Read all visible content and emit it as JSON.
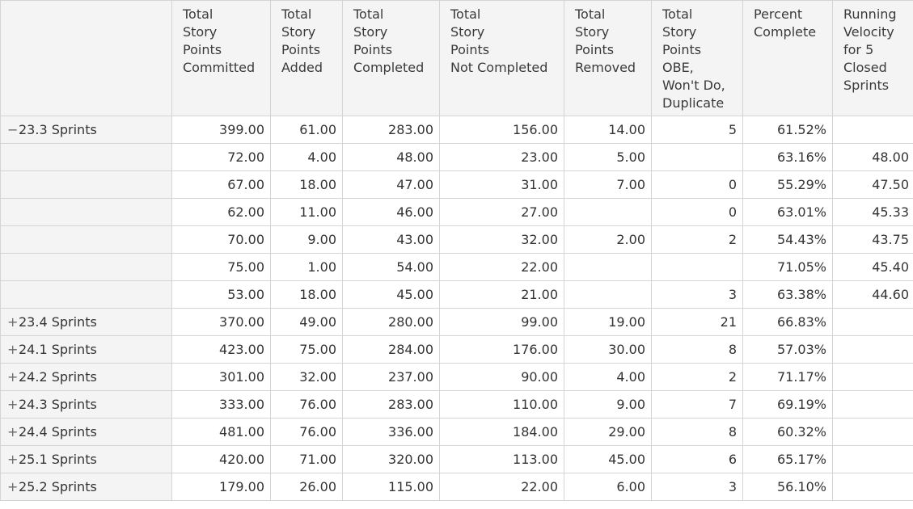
{
  "columns": [
    {
      "key": "corner",
      "label": []
    },
    {
      "key": "committed",
      "label": [
        "Total",
        "Story",
        "Points",
        "Committed"
      ]
    },
    {
      "key": "added",
      "label": [
        "Total",
        "Story",
        "Points",
        "Added"
      ]
    },
    {
      "key": "completed",
      "label": [
        "Total",
        "Story",
        "Points",
        "Completed"
      ]
    },
    {
      "key": "not_completed",
      "label": [
        "Total",
        "Story",
        "Points",
        "Not Completed"
      ]
    },
    {
      "key": "removed",
      "label": [
        "Total",
        "Story",
        "Points",
        "Removed"
      ]
    },
    {
      "key": "obe",
      "label": [
        "Total",
        "Story",
        "Points",
        "OBE,",
        "Won't Do,",
        "Duplicate"
      ]
    },
    {
      "key": "percent",
      "label": [
        "Percent",
        "Complete"
      ]
    },
    {
      "key": "velocity",
      "label": [
        "Running",
        "Velocity",
        "for 5",
        "Closed",
        "Sprints"
      ]
    }
  ],
  "rows": [
    {
      "label": "23.3 Sprints",
      "toggle": "−",
      "cells": [
        "399.00",
        "61.00",
        "283.00",
        "156.00",
        "14.00",
        "5",
        "61.52%",
        ""
      ]
    },
    {
      "label": "",
      "toggle": "",
      "cells": [
        "72.00",
        "4.00",
        "48.00",
        "23.00",
        "5.00",
        "",
        "63.16%",
        "48.00"
      ]
    },
    {
      "label": "",
      "toggle": "",
      "cells": [
        "67.00",
        "18.00",
        "47.00",
        "31.00",
        "7.00",
        "0",
        "55.29%",
        "47.50"
      ]
    },
    {
      "label": "",
      "toggle": "",
      "cells": [
        "62.00",
        "11.00",
        "46.00",
        "27.00",
        "",
        "0",
        "63.01%",
        "45.33"
      ]
    },
    {
      "label": "",
      "toggle": "",
      "cells": [
        "70.00",
        "9.00",
        "43.00",
        "32.00",
        "2.00",
        "2",
        "54.43%",
        "43.75"
      ]
    },
    {
      "label": "",
      "toggle": "",
      "cells": [
        "75.00",
        "1.00",
        "54.00",
        "22.00",
        "",
        "",
        "71.05%",
        "45.40"
      ]
    },
    {
      "label": "",
      "toggle": "",
      "cells": [
        "53.00",
        "18.00",
        "45.00",
        "21.00",
        "",
        "3",
        "63.38%",
        "44.60"
      ]
    },
    {
      "label": "23.4 Sprints",
      "toggle": "+",
      "cells": [
        "370.00",
        "49.00",
        "280.00",
        "99.00",
        "19.00",
        "21",
        "66.83%",
        ""
      ]
    },
    {
      "label": "24.1 Sprints",
      "toggle": "+",
      "cells": [
        "423.00",
        "75.00",
        "284.00",
        "176.00",
        "30.00",
        "8",
        "57.03%",
        ""
      ]
    },
    {
      "label": "24.2 Sprints",
      "toggle": "+",
      "cells": [
        "301.00",
        "32.00",
        "237.00",
        "90.00",
        "4.00",
        "2",
        "71.17%",
        ""
      ]
    },
    {
      "label": "24.3 Sprints",
      "toggle": "+",
      "cells": [
        "333.00",
        "76.00",
        "283.00",
        "110.00",
        "9.00",
        "7",
        "69.19%",
        ""
      ]
    },
    {
      "label": "24.4 Sprints",
      "toggle": "+",
      "cells": [
        "481.00",
        "76.00",
        "336.00",
        "184.00",
        "29.00",
        "8",
        "60.32%",
        ""
      ]
    },
    {
      "label": "25.1 Sprints",
      "toggle": "+",
      "cells": [
        "420.00",
        "71.00",
        "320.00",
        "113.00",
        "45.00",
        "6",
        "65.17%",
        ""
      ]
    },
    {
      "label": "25.2 Sprints",
      "toggle": "+",
      "cells": [
        "179.00",
        "26.00",
        "115.00",
        "22.00",
        "6.00",
        "3",
        "56.10%",
        ""
      ]
    }
  ]
}
